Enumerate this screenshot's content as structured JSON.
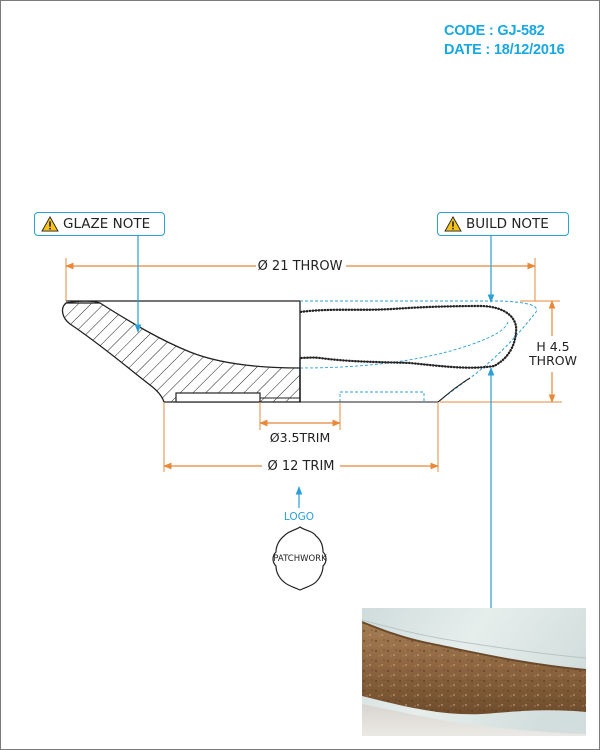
{
  "header": {
    "code": "CODE : GJ-582",
    "date": "DATE : 18/12/2016"
  },
  "notes": {
    "glaze": "GLAZE NOTE",
    "build": "BUILD NOTE"
  },
  "dimensions": {
    "throw_diameter": "Ø 21 THROW",
    "height_line1": "H 4.5",
    "height_line2": "THROW",
    "foot_ring": "Ø3.5TRIM",
    "trim_diameter": "Ø 12 TRIM"
  },
  "logo": {
    "label": "LOGO",
    "stamp_text": "PATCHWORK"
  },
  "colors": {
    "accent": "#18a8e0",
    "dimension": "#e8883a",
    "outline": "#222222",
    "leader": "#2aa0d6"
  },
  "icons": {
    "warning": "warning-icon"
  }
}
